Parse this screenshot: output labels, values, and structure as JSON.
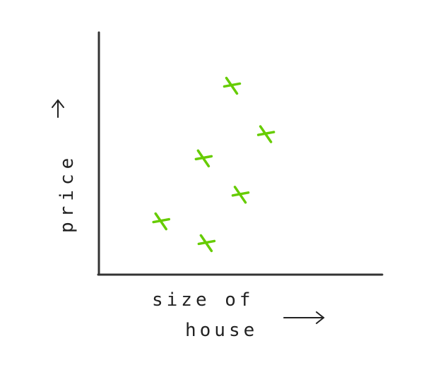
{
  "chart_data": {
    "type": "scatter",
    "title": "",
    "xlabel": "size of house",
    "ylabel": "price",
    "xlim": [
      0,
      10
    ],
    "ylim": [
      0,
      10
    ],
    "grid": false,
    "legend": "none",
    "points": [
      {
        "x": 2.2,
        "y": 2.2
      },
      {
        "x": 3.8,
        "y": 1.3
      },
      {
        "x": 3.7,
        "y": 4.8
      },
      {
        "x": 5.0,
        "y": 3.3
      },
      {
        "x": 4.7,
        "y": 7.8
      },
      {
        "x": 5.9,
        "y": 5.8
      }
    ],
    "marker_color": "#66cc00",
    "axis_color": "#333333"
  }
}
